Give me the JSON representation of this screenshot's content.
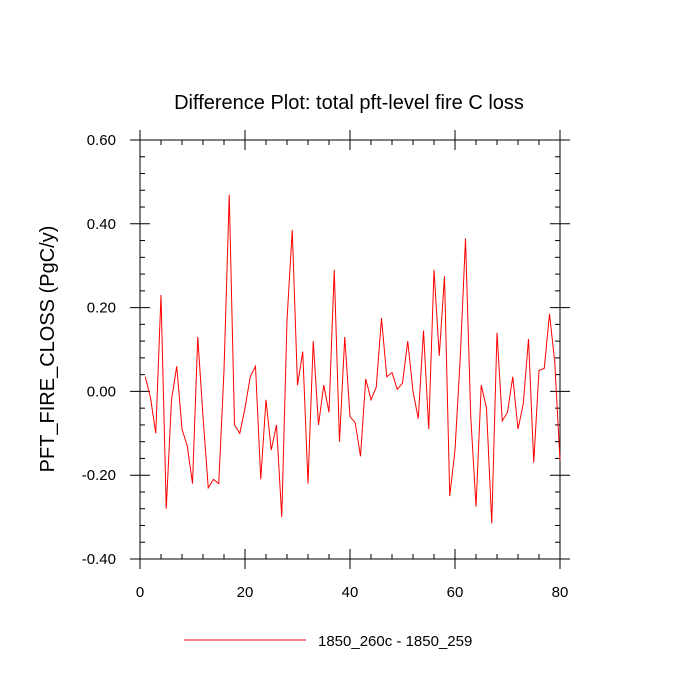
{
  "chart_data": {
    "type": "line",
    "title": "Difference Plot: total pft-level fire C loss",
    "xlabel": "",
    "ylabel": "PFT_FIRE_CLOSS  (PgC/y)",
    "xlim": [
      0,
      80
    ],
    "ylim": [
      -0.4,
      0.6
    ],
    "x_ticks": [
      0,
      20,
      40,
      60,
      80
    ],
    "x_tick_labels": [
      "0",
      "20",
      "40",
      "60",
      "80"
    ],
    "y_ticks": [
      -0.4,
      -0.2,
      0.0,
      0.2,
      0.4,
      0.6
    ],
    "y_tick_labels": [
      "-0.40",
      "-0.20",
      "0.00",
      "0.20",
      "0.40",
      "0.60"
    ],
    "grid": false,
    "legend_position": "bottom",
    "series": [
      {
        "name": "1850_260c - 1850_259",
        "color": "#ff0000",
        "x": [
          1,
          2,
          3,
          4,
          5,
          6,
          7,
          8,
          9,
          10,
          11,
          12,
          13,
          14,
          15,
          16,
          17,
          18,
          19,
          20,
          21,
          22,
          23,
          24,
          25,
          26,
          27,
          28,
          29,
          30,
          31,
          32,
          33,
          34,
          35,
          36,
          37,
          38,
          39,
          40,
          41,
          42,
          43,
          44,
          45,
          46,
          47,
          48,
          49,
          50,
          51,
          52,
          53,
          54,
          55,
          56,
          57,
          58,
          59,
          60,
          61,
          62,
          63,
          64,
          65,
          66,
          67,
          68,
          69,
          70,
          71,
          72,
          73,
          74,
          75,
          76,
          77,
          78,
          79,
          80
        ],
        "y": [
          0.035,
          -0.015,
          -0.1,
          0.23,
          -0.28,
          -0.02,
          0.06,
          -0.09,
          -0.13,
          -0.22,
          0.13,
          -0.06,
          -0.23,
          -0.21,
          -0.22,
          0.05,
          0.47,
          -0.08,
          -0.1,
          -0.04,
          0.035,
          0.06,
          -0.21,
          -0.02,
          -0.14,
          -0.08,
          -0.3,
          0.17,
          0.385,
          0.015,
          0.095,
          -0.22,
          0.12,
          -0.08,
          0.015,
          -0.05,
          0.29,
          -0.12,
          0.13,
          -0.06,
          -0.075,
          -0.155,
          0.03,
          -0.02,
          0.01,
          0.175,
          0.035,
          0.045,
          0.005,
          0.02,
          0.12,
          0.0,
          -0.065,
          0.145,
          -0.09,
          0.29,
          0.085,
          0.275,
          -0.25,
          -0.14,
          0.08,
          0.365,
          -0.06,
          -0.275,
          0.015,
          -0.04,
          -0.315,
          0.14,
          -0.07,
          -0.05,
          0.035,
          -0.09,
          -0.03,
          0.125,
          -0.17,
          0.05,
          0.055,
          0.185,
          0.07,
          -0.165
        ]
      }
    ]
  }
}
